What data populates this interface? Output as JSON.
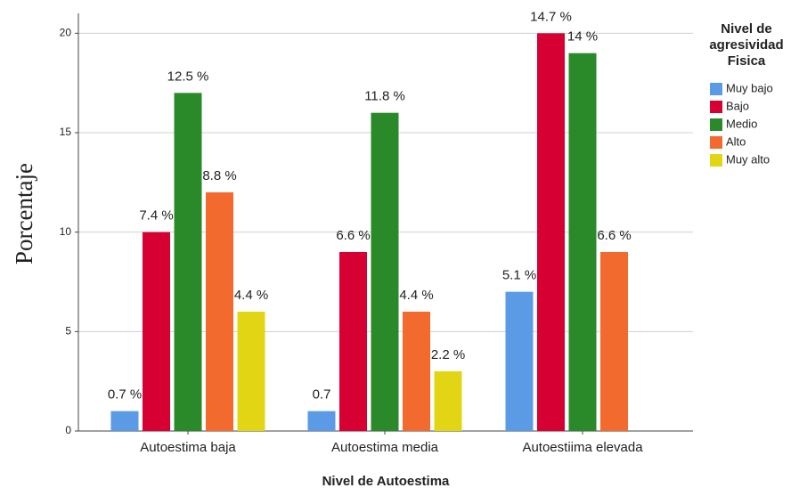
{
  "chart_data": {
    "type": "bar",
    "x_label": "Nivel de Autoestima",
    "y_label": "Porcentaje",
    "legend_title": [
      "Nivel de",
      "agresividad",
      "Fisica"
    ],
    "categories": [
      "Autoestima baja",
      "Autoestima media",
      "Autoestiima elevada"
    ],
    "series": [
      {
        "name": "Muy bajo",
        "color": "#5b9be6",
        "values": [
          1,
          1,
          7
        ],
        "annotations": [
          "0.7 %",
          "0.7",
          "5.1 %"
        ]
      },
      {
        "name": "Bajo",
        "color": "#d60032",
        "values": [
          10,
          9,
          20
        ],
        "annotations": [
          "7.4 %",
          "6.6 %",
          "14.7 %"
        ]
      },
      {
        "name": "Medio",
        "color": "#2a8a2a",
        "values": [
          17,
          16,
          19
        ],
        "annotations": [
          "12.5 %",
          "11.8 %",
          "14 %"
        ]
      },
      {
        "name": "Alto",
        "color": "#f26a2e",
        "values": [
          12,
          6,
          9
        ],
        "annotations": [
          "8.8 %",
          "4.4 %",
          "6.6 %"
        ]
      },
      {
        "name": "Muy alto",
        "color": "#e2d614",
        "values": [
          6,
          3,
          null
        ],
        "annotations": [
          "4.4 %",
          "2.2 %",
          null
        ]
      }
    ],
    "ylim": [
      0,
      21
    ],
    "yticks": [
      0,
      5,
      10,
      15,
      20
    ],
    "grid": true,
    "legend": "right"
  }
}
